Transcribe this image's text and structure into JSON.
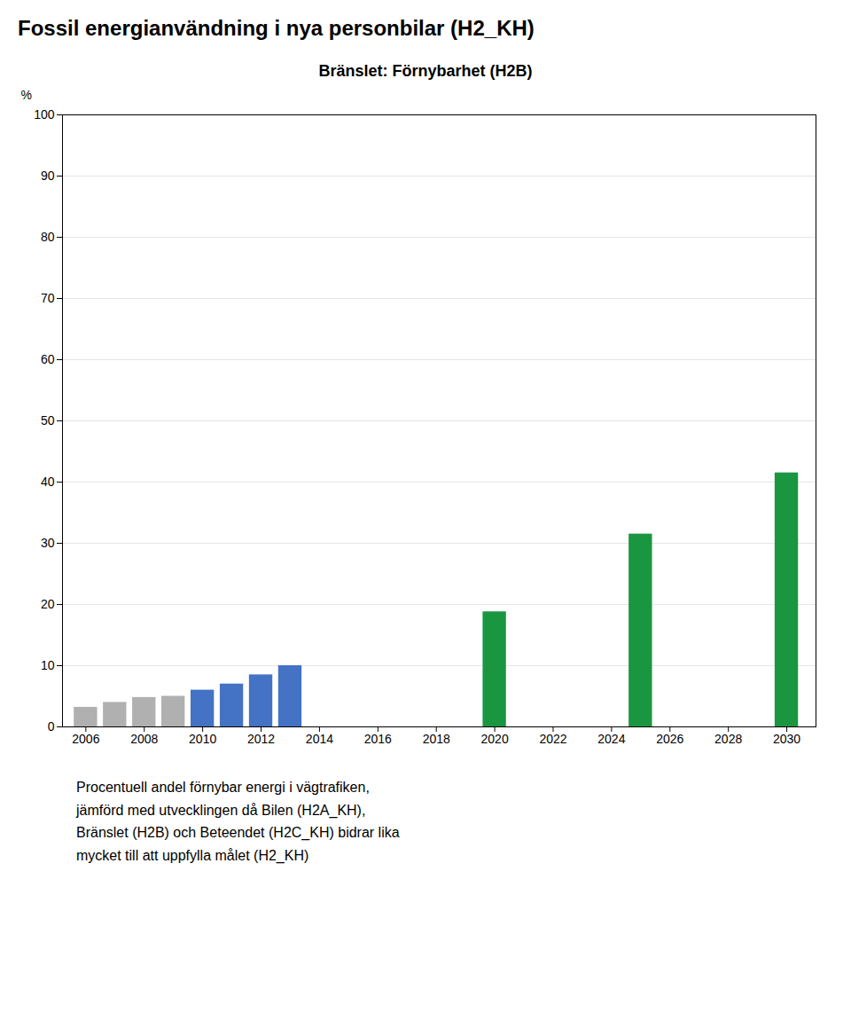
{
  "chart_data": {
    "type": "bar",
    "title": "Fossil energianvändning i nya personbilar (H2_KH)",
    "subtitle": "Bränslet: Förnybarhet (H2B)",
    "ylabel": "%",
    "x": [
      2006,
      2007,
      2008,
      2009,
      2010,
      2011,
      2012,
      2013,
      2014,
      2015,
      2016,
      2017,
      2018,
      2019,
      2020,
      2021,
      2022,
      2023,
      2024,
      2025,
      2026,
      2027,
      2028,
      2029,
      2030
    ],
    "values": [
      3.2,
      4.0,
      4.8,
      5.0,
      6.0,
      7.0,
      8.5,
      10.0,
      0,
      0,
      0,
      0,
      0,
      0,
      18.8,
      0,
      0,
      0,
      0,
      31.5,
      0,
      0,
      0,
      0,
      41.5
    ],
    "colors": [
      "#b0b0b0",
      "#b0b0b0",
      "#b0b0b0",
      "#b0b0b0",
      "#4472c4",
      "#4472c4",
      "#4472c4",
      "#4472c4",
      "#b0b0b0",
      "#b0b0b0",
      "#b0b0b0",
      "#b0b0b0",
      "#b0b0b0",
      "#b0b0b0",
      "#1a9641",
      "#b0b0b0",
      "#b0b0b0",
      "#b0b0b0",
      "#b0b0b0",
      "#1a9641",
      "#b0b0b0",
      "#b0b0b0",
      "#b0b0b0",
      "#b0b0b0",
      "#1a9641"
    ],
    "xlim": [
      2005.2,
      2031
    ],
    "xticks": [
      2006,
      2008,
      2010,
      2012,
      2014,
      2016,
      2018,
      2020,
      2022,
      2024,
      2026,
      2028,
      2030
    ],
    "ylim": [
      0,
      100
    ],
    "yticks": [
      0,
      10,
      20,
      30,
      40,
      50,
      60,
      70,
      80,
      90,
      100
    ],
    "grid": true,
    "footnote": [
      "Procentuell andel förnybar energi i vägtrafiken,",
      "jämförd med utvecklingen då Bilen (H2A_KH),",
      "Bränslet (H2B) och Beteendet (H2C_KH) bidrar lika",
      "mycket till att uppfylla målet (H2_KH)"
    ]
  }
}
